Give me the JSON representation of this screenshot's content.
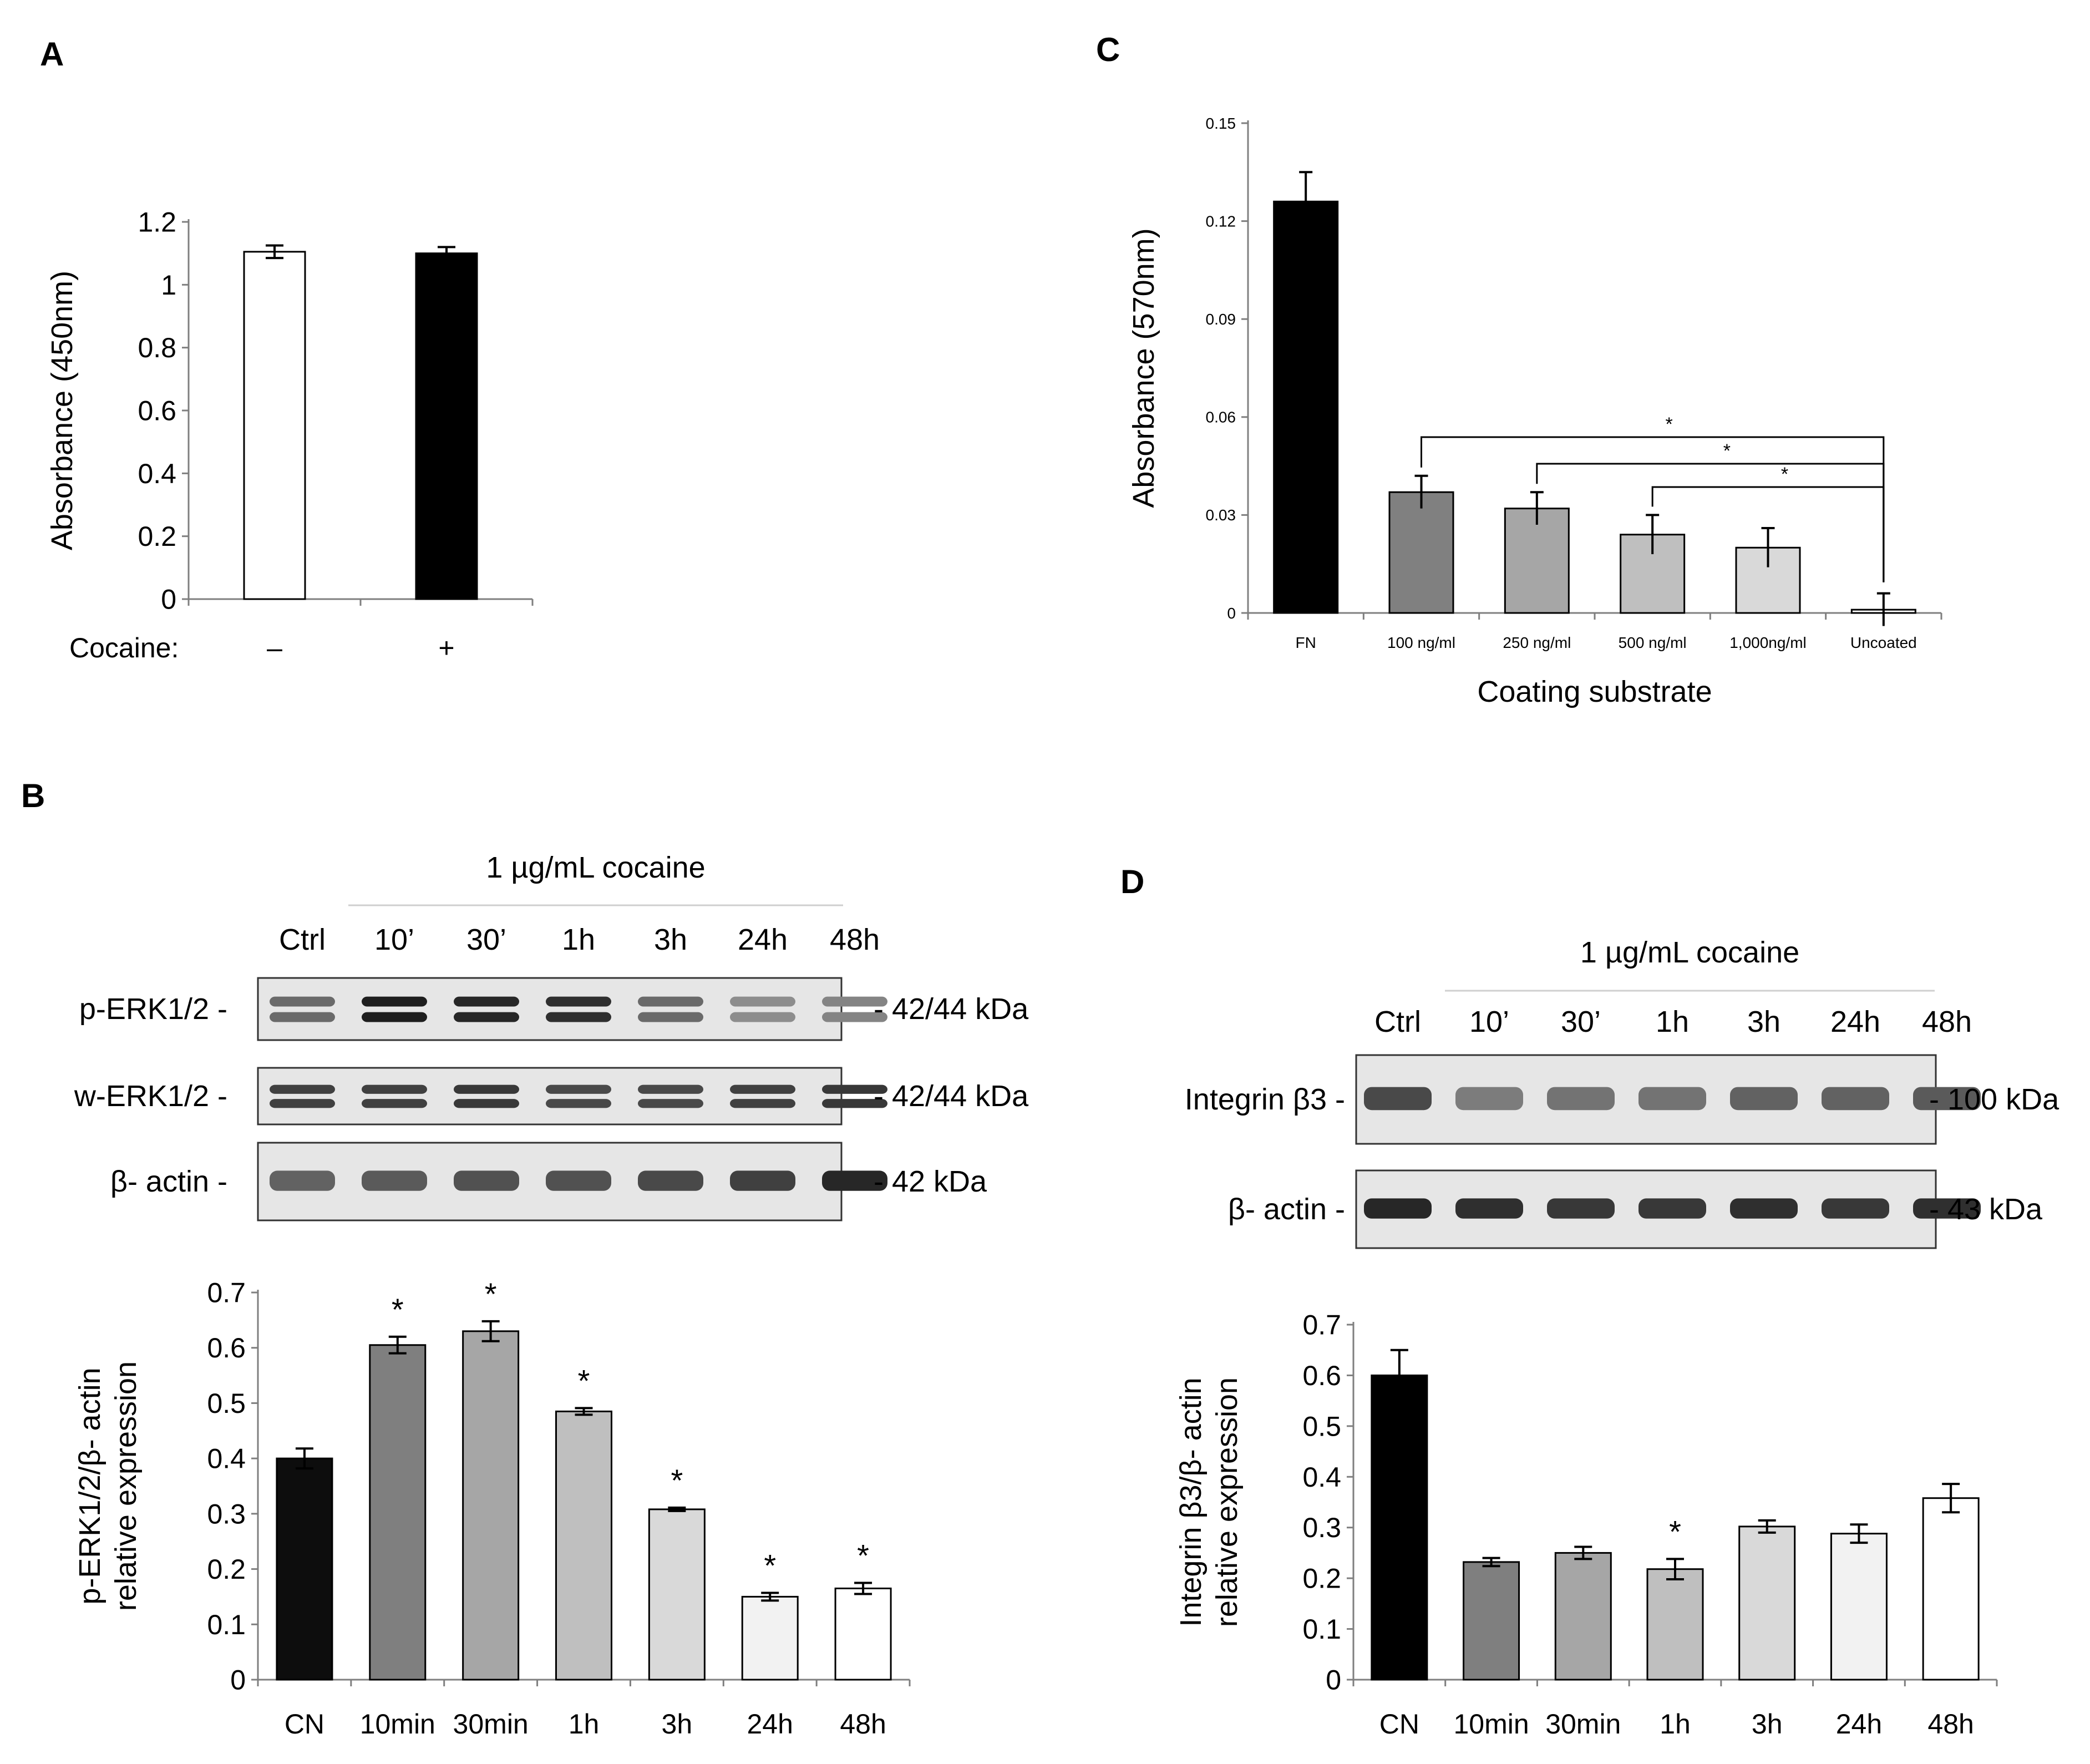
{
  "panels": {
    "a": "A",
    "b": "B",
    "c": "C",
    "d": "D"
  },
  "chart_data": [
    {
      "id": "A",
      "type": "bar",
      "ylabel": "Absorbance (450nm)",
      "xlabel_prefix": "Cocaine:",
      "categories": [
        "–",
        "+"
      ],
      "values": [
        1.105,
        1.1
      ],
      "errors": [
        0.02,
        0.02
      ],
      "colors": [
        "#ffffff",
        "#000000"
      ],
      "ylim": [
        0,
        1.2
      ],
      "yticks": [
        "0",
        "0.2",
        "0.4",
        "0.6",
        "0.8",
        "1",
        "1.2"
      ],
      "grid": false
    },
    {
      "id": "B",
      "type": "bar",
      "ylabel": [
        "p-ERK1/2/β- actin",
        "relative expression"
      ],
      "categories": [
        "CN",
        "10min",
        "30min",
        "1h",
        "3h",
        "24h",
        "48h"
      ],
      "values": [
        0.4,
        0.605,
        0.63,
        0.485,
        0.308,
        0.15,
        0.165
      ],
      "errors": [
        0.018,
        0.015,
        0.018,
        0.006,
        0.003,
        0.007,
        0.01
      ],
      "significance": [
        "",
        "*",
        "*",
        "*",
        "*",
        "*",
        "*"
      ],
      "colors": [
        "#0d0d0d",
        "#7f7f7f",
        "#a6a6a6",
        "#bfbfbf",
        "#d9d9d9",
        "#f2f2f2",
        "#ffffff"
      ],
      "ylim": [
        0,
        0.7
      ],
      "yticks": [
        "0",
        "0.1",
        "0.2",
        "0.3",
        "0.4",
        "0.5",
        "0.6",
        "0.7"
      ],
      "grid": false
    },
    {
      "id": "C",
      "type": "bar",
      "ylabel": "Absorbance (570nm)",
      "xlabel": "Coating substrate",
      "categories": [
        "FN",
        "100 ng/ml",
        "250 ng/ml",
        "500 ng/ml",
        "1,000ng/ml",
        "Uncoated"
      ],
      "values": [
        0.126,
        0.037,
        0.032,
        0.024,
        0.02,
        0.001
      ],
      "errors": [
        0.009,
        0.005,
        0.005,
        0.006,
        0.006,
        0.005
      ],
      "colors": [
        "#000000",
        "#808080",
        "#a6a6a6",
        "#bfbfbf",
        "#d9d9d9",
        "#ffffff"
      ],
      "ylim": [
        0,
        0.15
      ],
      "yticks": [
        "0",
        "0.03",
        "0.06",
        "0.09",
        "0.12",
        "0.15"
      ],
      "comparisons": [
        {
          "from": "100 ng/ml",
          "to": "Uncoated",
          "label": "*"
        },
        {
          "from": "250 ng/ml",
          "to": "Uncoated",
          "label": "*"
        },
        {
          "from": "500 ng/ml",
          "to": "Uncoated",
          "label": "*"
        }
      ],
      "grid": false
    },
    {
      "id": "D",
      "type": "bar",
      "ylabel": [
        "Integrin β3/β- actin",
        "relative expression"
      ],
      "categories": [
        "CN",
        "10min",
        "30min",
        "1h",
        "3h",
        "24h",
        "48h"
      ],
      "values": [
        0.6,
        0.232,
        0.25,
        0.218,
        0.302,
        0.288,
        0.358
      ],
      "errors": [
        0.05,
        0.008,
        0.012,
        0.02,
        0.012,
        0.018,
        0.028
      ],
      "significance": [
        "",
        "",
        "",
        "*",
        "",
        "",
        ""
      ],
      "colors": [
        "#000000",
        "#7f7f7f",
        "#a6a6a6",
        "#bfbfbf",
        "#d9d9d9",
        "#f2f2f2",
        "#ffffff"
      ],
      "ylim": [
        0,
        0.7
      ],
      "yticks": [
        "0",
        "0.1",
        "0.2",
        "0.3",
        "0.4",
        "0.5",
        "0.6",
        "0.7"
      ],
      "grid": false
    }
  ],
  "blots": {
    "b": {
      "treatment": "1 µg/mL cocaine",
      "lanes": [
        "Ctrl",
        "10’",
        "30’",
        "1h",
        "3h",
        "24h",
        "48h"
      ],
      "rows": [
        {
          "label": "p-ERK1/2 -",
          "size": "- 42/44 kDa",
          "intensity": [
            0.55,
            1.0,
            0.95,
            0.9,
            0.55,
            0.35,
            0.4
          ]
        },
        {
          "label": "w-ERK1/2 -",
          "size": "- 42/44 kDa",
          "intensity": [
            0.8,
            0.8,
            0.85,
            0.75,
            0.75,
            0.8,
            0.85
          ]
        },
        {
          "label": "β- actin -",
          "size": "- 42 kDa",
          "intensity": [
            0.6,
            0.65,
            0.7,
            0.7,
            0.75,
            0.8,
            0.95
          ]
        }
      ]
    },
    "d": {
      "treatment": "1 µg/mL cocaine",
      "lanes": [
        "Ctrl",
        "10’",
        "30’",
        "1h",
        "3h",
        "24h",
        "48h"
      ],
      "rows": [
        {
          "label": "Integrin β3 -",
          "size": "- 100 kDa",
          "intensity": [
            0.75,
            0.45,
            0.5,
            0.5,
            0.6,
            0.6,
            0.65
          ]
        },
        {
          "label": "β- actin  -",
          "size": "- 43 kDa",
          "intensity": [
            0.95,
            0.9,
            0.85,
            0.85,
            0.9,
            0.85,
            0.9
          ]
        }
      ]
    }
  }
}
